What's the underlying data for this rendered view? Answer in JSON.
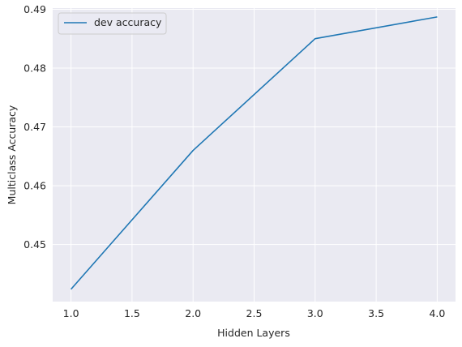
{
  "chart_data": {
    "type": "line",
    "title": "",
    "xlabel": "Hidden Layers",
    "ylabel": "Multiclass Accuracy",
    "xlim": [
      0.85,
      4.15
    ],
    "ylim": [
      0.4403,
      0.4902
    ],
    "x_ticks": [
      1.0,
      1.5,
      2.0,
      2.5,
      3.0,
      3.5,
      4.0
    ],
    "x_tick_labels": [
      "1.0",
      "1.5",
      "2.0",
      "2.5",
      "3.0",
      "3.5",
      "4.0"
    ],
    "y_ticks": [
      0.45,
      0.46,
      0.47,
      0.48,
      0.49
    ],
    "y_tick_labels": [
      "0.45",
      "0.46",
      "0.47",
      "0.48",
      "0.49"
    ],
    "grid": true,
    "legend_position": "top-left",
    "background_color": "#eaeaf2",
    "grid_color": "#ffffff",
    "series": [
      {
        "name": "dev accuracy",
        "color": "#1f77b4",
        "x": [
          1.0,
          2.0,
          3.0,
          4.0
        ],
        "y": [
          0.4424,
          0.466,
          0.485,
          0.4887
        ]
      }
    ]
  }
}
